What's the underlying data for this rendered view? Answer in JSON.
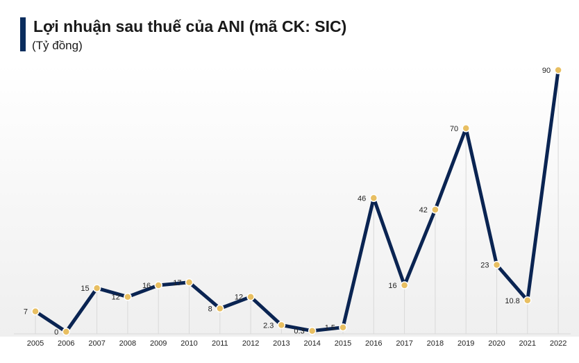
{
  "header": {
    "title": "Lợi nhuận sau thuế của ANI (mã CK: SIC)",
    "unit": "(Tỷ đồng)"
  },
  "colors": {
    "line": "#0a2452",
    "marker": "#e8bf62",
    "accent_bar": "#0a2d5e",
    "gridline": "#d9d9d9"
  },
  "chart_data": {
    "type": "line",
    "title": "Lợi nhuận sau thuế của ANI (mã CK: SIC)",
    "subtitle": "(Tỷ đồng)",
    "xlabel": "",
    "ylabel": "",
    "categories": [
      "2005",
      "2006",
      "2007",
      "2008",
      "2009",
      "2010",
      "2011",
      "2012",
      "2013",
      "2014",
      "2015",
      "2016",
      "2017",
      "2018",
      "2019",
      "2020",
      "2021",
      "2022"
    ],
    "series": [
      {
        "values": [
          7,
          0,
          15,
          12,
          16,
          17,
          8,
          12,
          2.3,
          0.3,
          1.5,
          46,
          16,
          42,
          70,
          23,
          10.8,
          90
        ],
        "labels": [
          "7",
          "0",
          "15",
          "12",
          "16",
          "17",
          "8",
          "12",
          "2.3",
          "0.3",
          "1.5",
          "46",
          "16",
          "42",
          "70",
          "23",
          "10.8",
          "90"
        ]
      }
    ],
    "ylim": [
      0,
      90
    ],
    "grid": "vertical",
    "legend": "none",
    "marker": "circle",
    "data_labels": "left"
  }
}
